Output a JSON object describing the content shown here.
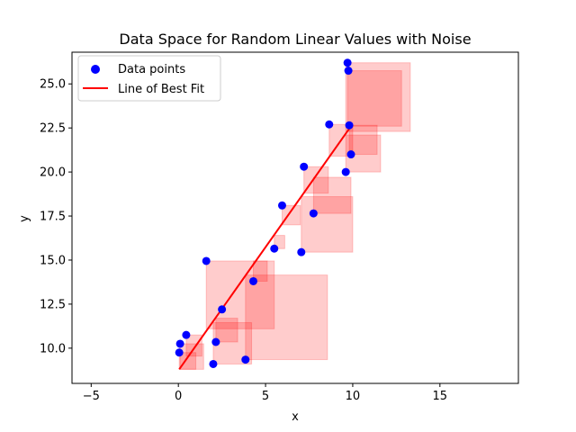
{
  "chart_data": {
    "type": "scatter",
    "title": "Data Space for Random Linear Values with Noise",
    "xlabel": "x",
    "ylabel": "y",
    "xlim": [
      -6.1,
      19.5
    ],
    "ylim": [
      8.0,
      26.8
    ],
    "xticks": [
      -5,
      0,
      5,
      10,
      15
    ],
    "yticks": [
      10.0,
      12.5,
      15.0,
      17.5,
      20.0,
      22.5,
      25.0
    ],
    "xtick_labels": [
      "−5",
      "0",
      "5",
      "10",
      "15"
    ],
    "ytick_labels": [
      "10.0",
      "12.5",
      "15.0",
      "17.5",
      "20.0",
      "22.5",
      "25.0"
    ],
    "grid": false,
    "legend_position": "upper-left",
    "colors": {
      "points": "#0000ff",
      "line": "#ff0000",
      "rect_fill": "#ff0000",
      "rect_alpha": 0.2
    },
    "series": [
      {
        "name": "Data points",
        "kind": "scatter",
        "x": [
          0.05,
          0.1,
          0.45,
          2.0,
          2.15,
          2.5,
          1.6,
          3.85,
          4.3,
          5.5,
          5.95,
          7.05,
          7.2,
          7.75,
          8.65,
          9.6,
          9.7,
          9.75,
          9.8,
          9.9
        ],
        "y": [
          9.75,
          10.25,
          10.75,
          9.1,
          10.35,
          12.2,
          14.95,
          9.35,
          13.8,
          15.65,
          18.1,
          15.45,
          20.3,
          17.65,
          22.7,
          20.0,
          26.2,
          25.75,
          22.65,
          21.0
        ]
      },
      {
        "name": "Line of Best Fit",
        "kind": "line",
        "x": [
          0.05,
          9.9
        ],
        "y": [
          8.8,
          22.6
        ]
      }
    ],
    "rectangles": [
      {
        "x0": 9.6,
        "x1": 13.3,
        "y0": 22.3,
        "y1": 26.2
      },
      {
        "x0": 9.7,
        "x1": 12.8,
        "y0": 22.6,
        "y1": 25.75
      },
      {
        "x0": 8.65,
        "x1": 10.0,
        "y0": 20.9,
        "y1": 22.7
      },
      {
        "x0": 9.8,
        "x1": 11.4,
        "y0": 21.0,
        "y1": 22.65
      },
      {
        "x0": 9.6,
        "x1": 11.6,
        "y0": 20.0,
        "y1": 22.1
      },
      {
        "x0": 7.2,
        "x1": 8.6,
        "y0": 18.8,
        "y1": 20.3
      },
      {
        "x0": 7.75,
        "x1": 9.9,
        "y0": 17.65,
        "y1": 19.7
      },
      {
        "x0": 5.95,
        "x1": 7.0,
        "y0": 17.0,
        "y1": 18.1
      },
      {
        "x0": 7.05,
        "x1": 10.0,
        "y0": 15.45,
        "y1": 18.6
      },
      {
        "x0": 5.5,
        "x1": 6.1,
        "y0": 15.65,
        "y1": 16.4
      },
      {
        "x0": 1.6,
        "x1": 5.5,
        "y0": 11.1,
        "y1": 14.95
      },
      {
        "x0": 4.3,
        "x1": 5.1,
        "y0": 13.8,
        "y1": 14.95
      },
      {
        "x0": 3.85,
        "x1": 8.55,
        "y0": 9.35,
        "y1": 14.15
      },
      {
        "x0": 2.15,
        "x1": 3.4,
        "y0": 10.35,
        "y1": 11.7
      },
      {
        "x0": 2.0,
        "x1": 4.2,
        "y0": 9.1,
        "y1": 11.45
      },
      {
        "x0": 0.45,
        "x1": 1.35,
        "y0": 9.55,
        "y1": 10.75
      },
      {
        "x0": 0.05,
        "x1": 1.45,
        "y0": 8.8,
        "y1": 10.25
      },
      {
        "x0": 0.1,
        "x1": 1.0,
        "y0": 8.8,
        "y1": 9.75
      }
    ]
  }
}
